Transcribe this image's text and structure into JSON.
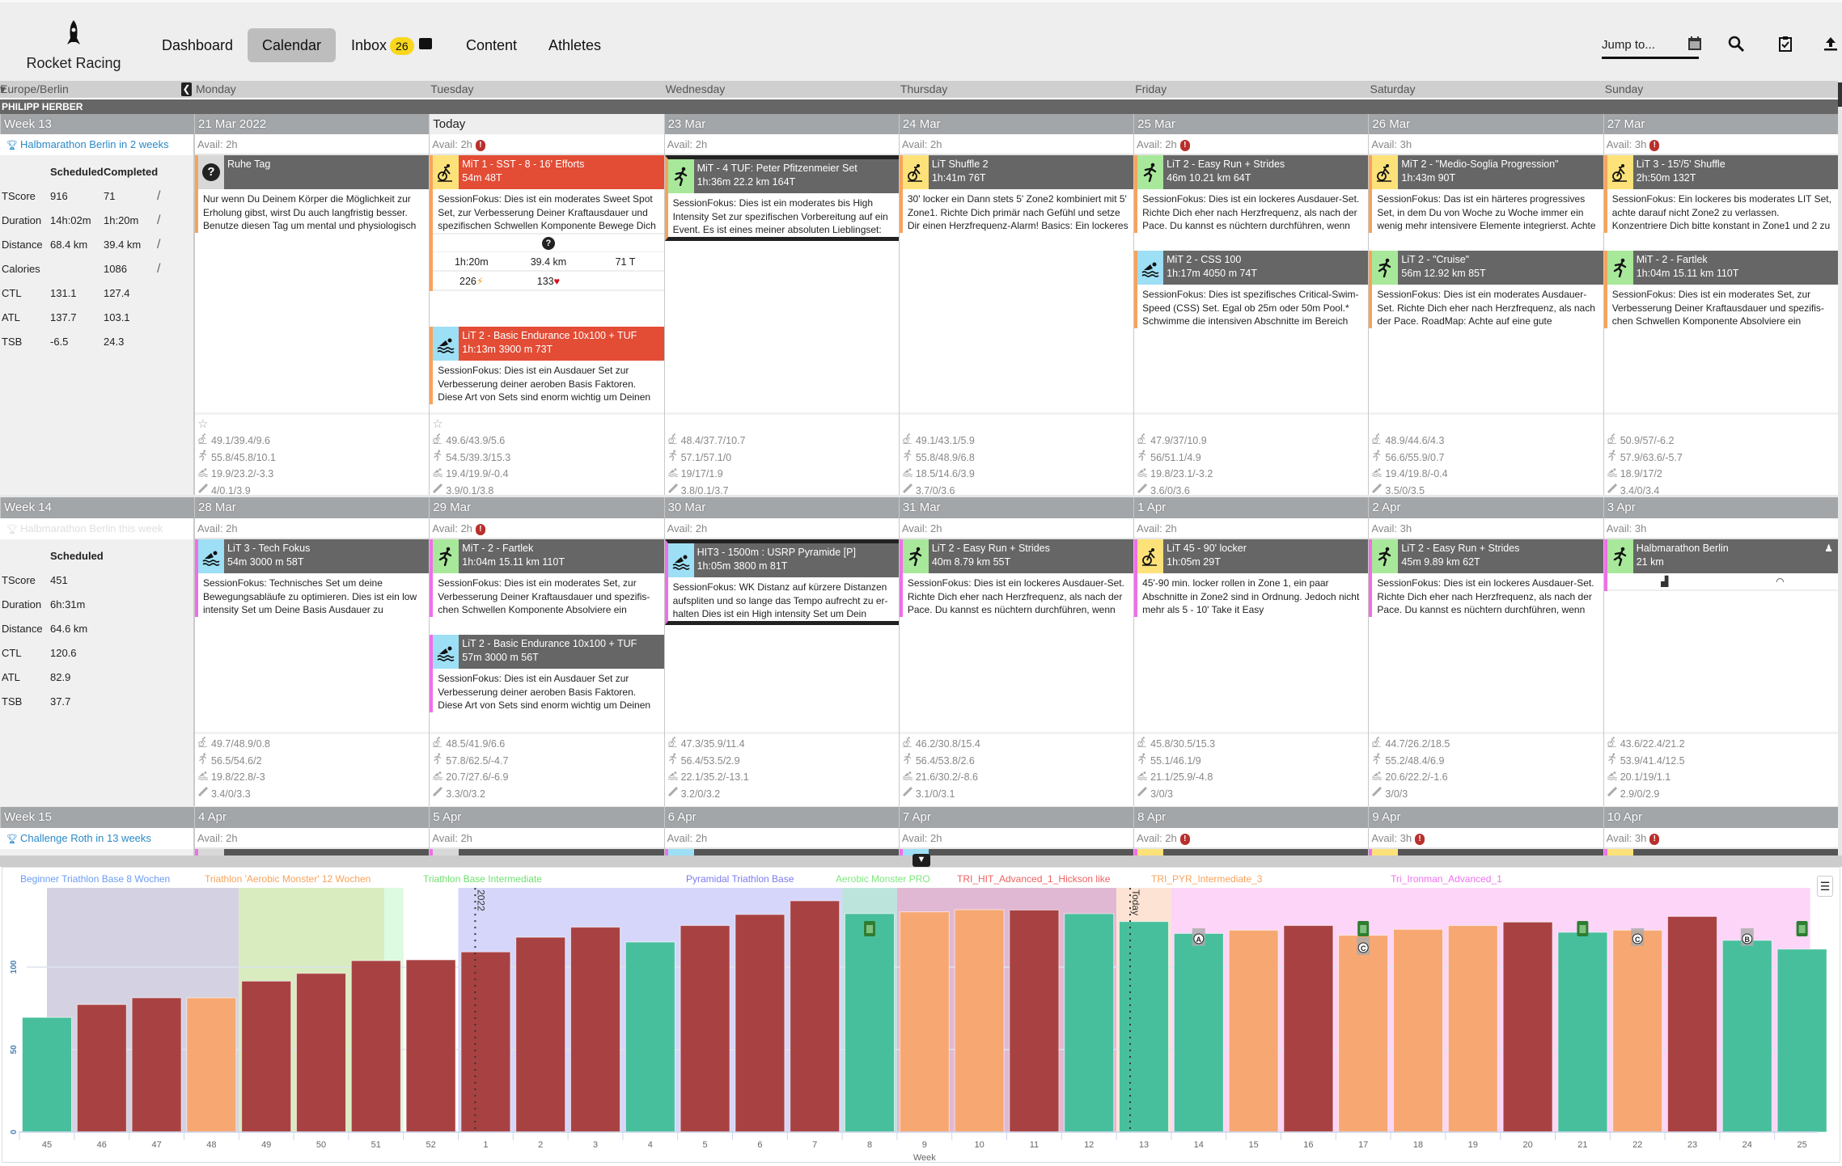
{
  "app": {
    "name": "Rocket Racing"
  },
  "nav": [
    {
      "label": "Dashboard"
    },
    {
      "label": "Calendar",
      "active": true
    },
    {
      "label": "Inbox",
      "badge": "26"
    },
    {
      "label": "Content"
    },
    {
      "label": "Athletes"
    }
  ],
  "toolbar": {
    "jump_placeholder": "Jump to..."
  },
  "timezone": "Europe/Berlin",
  "weekdays": [
    "Monday",
    "Tuesday",
    "Wednesday",
    "Thursday",
    "Friday",
    "Saturday",
    "Sunday"
  ],
  "athlete": "PHILIPP HERBER",
  "colors": {
    "bike": "#fde27a",
    "run": "#a8e89a",
    "swim": "#9ddff5",
    "rest": "#d8d8d8",
    "accent": "#2a8ac8",
    "badge": "#f9d71c",
    "alert": "#b8302c"
  },
  "weeks": [
    {
      "label": "Week 13",
      "goal": "Halbmarathon Berlin in 2 weeks",
      "goal_faded": false,
      "stripe": "#f7a35c",
      "stat_headers": [
        "Scheduled",
        "Completed"
      ],
      "stats": [
        {
          "k": "TScore",
          "s": "916",
          "c": "71",
          "slash": true
        },
        {
          "k": "Duration",
          "s": "14h:02m",
          "c": "1h:20m",
          "slash": true
        },
        {
          "k": "Distance",
          "s": "68.4 km",
          "c": "39.4 km",
          "slash": true
        },
        {
          "k": "Calories",
          "s": "",
          "c": "1086",
          "slash": true
        },
        {
          "k": "CTL",
          "s": "131.1",
          "c": "127.4"
        },
        {
          "k": "ATL",
          "s": "137.7",
          "c": "103.1"
        },
        {
          "k": "TSB",
          "s": "-6.5",
          "c": "24.3"
        }
      ],
      "days": [
        {
          "date": "21 Mar 2022",
          "avail": "Avail: 2h",
          "star": true,
          "workouts": [
            {
              "sport": "rest",
              "title": "Ruhe Tag",
              "sub": "",
              "desc": "Nur wenn Du Deinem Körper die Möglichkeit zur Erholung gibst, wirst Du auch langfristig besser. Benutze diesen Tag um mental und physiologisch"
            }
          ],
          "metrics": [
            "49.1/39.4/9.6",
            "55.8/45.8/10.1",
            "19.9/23.2/-3.3",
            "4/0.1/3.9"
          ]
        },
        {
          "date": "Today",
          "today": true,
          "avail": "Avail: 2h",
          "alert": true,
          "star": true,
          "workouts": [
            {
              "sport": "bike",
              "red": true,
              "title": "MiT 1 - SST - 8 - 16' Efforts",
              "sub": "54m 48T",
              "desc": "SessionFokus:  Dies ist ein moderates Sweet Spot Set, zur Verbesserung Deiner Kraftausdauer und spezifischen Schwellen Komponente Bewege Dich",
              "done": {
                "duration": "1h:20m",
                "distance": "39.4 km",
                "tscore": "71 T",
                "power": "226",
                "hr": "133"
              }
            },
            {
              "sport": "swim",
              "red": true,
              "title": "LiT 2 - Basic Endurance 10x100 + TUF",
              "sub": "1h:13m 3900 m 73T",
              "desc": "SessionFokus:  Dies ist ein Ausdauer Set zur Verbesserung deiner aeroben Basis Faktoren. Diese Art von Sets sind enorm wichtig um Deinen"
            }
          ],
          "metrics": [
            "49.6/43.9/5.6",
            "54.5/39.3/15.3",
            "19.4/19.9/-0.4",
            "3.9/0.1/3.8"
          ]
        },
        {
          "date": "23 Mar",
          "avail": "Avail: 2h",
          "workouts": [
            {
              "sport": "run",
              "selected": true,
              "title": "MiT - 4 TUF: Peter Pfitzenmeier Set",
              "sub": "1h:36m 22.2 km 164T",
              "desc": "SessionFokus:  Dies ist ein moderates bis High Intensity Set zur spezifischen Vorbereitung auf ein Event.  Es ist eines meiner absoluten Lieblingset:"
            }
          ],
          "metrics": [
            "48.4/37.7/10.7",
            "57.1/57.1/0",
            "19/17/1.9",
            "3.8/0.1/3.7"
          ]
        },
        {
          "date": "24 Mar",
          "avail": "Avail: 2h",
          "workouts": [
            {
              "sport": "bike",
              "title": "LiT Shuffle 2",
              "sub": "1h:41m 76T",
              "desc": "30' locker ein Dann stets 5' Zone2 kombiniert mit 5' Zone1. Richte Dich primär nach Gefühl und setze Dir einen Herzfrequenz-Alarm! Basics:  Ein lockeres"
            }
          ],
          "metrics": [
            "49.1/43.1/5.9",
            "55.8/48.9/6.8",
            "18.5/14.6/3.9",
            "3.7/0/3.6"
          ]
        },
        {
          "date": "25 Mar",
          "avail": "Avail: 2h",
          "alert": true,
          "workouts": [
            {
              "sport": "run",
              "title": "LiT 2 - Easy Run + Strides",
              "sub": "46m 10.21 km 64T",
              "desc": "SessionFokus:  Dies ist ein lockeres Ausdauer-Set. Richte Dich eher nach Herzfrequenz, als nach der Pace.   Du kannst es nüchtern durchführen, wenn"
            },
            {
              "sport": "swim",
              "title": "MiT 2 - CSS 100",
              "sub": "1h:17m 4050 m 74T",
              "desc": "SessionFokus:  Dies ist spezifisches Critical-Swim-Speed (CSS) Set. Egal ob 25m oder 50m Pool.* Schwimme die intensiven Abschnitte im Bereich"
            }
          ],
          "metrics": [
            "47.9/37/10.9",
            "56/51.1/4.9",
            "19.8/23.1/-3.2",
            "3.6/0/3.6"
          ]
        },
        {
          "date": "26 Mar",
          "avail": "Avail: 3h",
          "workouts": [
            {
              "sport": "bike",
              "title": "MiT 2 - \"Medio-Soglia Progression\"",
              "sub": "1h:43m 90T",
              "desc": "SessionFokus:  Das ist ein härteres progressives Set, in dem Du von Woche zu Woche immer ein wenig mehr intensivere Elemente integrierst. Achte"
            },
            {
              "sport": "run",
              "title": "LiT 2 - \"Cruise\"",
              "sub": "56m 12.92 km 85T",
              "desc": "SessionFokus:  Dies ist ein moderates Ausdauer-Set.  Richte Dich eher nach Herzfrequenz, als nach der Pace.   RoadMap:  Achte auf eine gute"
            }
          ],
          "metrics": [
            "48.9/44.6/4.3",
            "56.6/55.9/0.7",
            "19.4/19.8/-0.4",
            "3.5/0/3.5"
          ]
        },
        {
          "date": "27 Mar",
          "avail": "Avail: 3h",
          "alert": true,
          "workouts": [
            {
              "sport": "bike",
              "title": "LiT 3 - 15'/5' Shuffle",
              "sub": "2h:50m 132T",
              "desc": "SessionFokus:  Ein lockeres bis moderates LIT Set, achte darauf nicht Zone2 zu verlassen. Konzentriere Dich bitte konstant in Zone1 und 2 zu arbeiten."
            },
            {
              "sport": "run",
              "title": "MiT - 2 - Fartlek",
              "sub": "1h:04m 15.11 km 110T",
              "desc": "SessionFokus:  Dies ist ein moderates Set, zur Verbesserung Deiner Kraftausdauer und spezifis-chen Schwellen Komponente Absolviere ein"
            }
          ],
          "metrics": [
            "50.9/57/-6.2",
            "57.9/63.6/-5.7",
            "18.9/17/2",
            "3.4/0/3.4"
          ]
        }
      ]
    },
    {
      "label": "Week 14",
      "goal": "Halbmarathon Berlin this week",
      "goal_faded": true,
      "stripe": "#ef6fe8",
      "stat_headers": [
        "Scheduled"
      ],
      "stats": [
        {
          "k": "TScore",
          "s": "451"
        },
        {
          "k": "Duration",
          "s": "6h:31m"
        },
        {
          "k": "Distance",
          "s": "64.6 km"
        },
        {
          "k": "CTL",
          "s": "120.6"
        },
        {
          "k": "ATL",
          "s": "82.9"
        },
        {
          "k": "TSB",
          "s": "37.7"
        }
      ],
      "days": [
        {
          "date": "28 Mar",
          "avail": "Avail: 2h",
          "workouts": [
            {
              "sport": "swim",
              "title": "LiT 3 - Tech Fokus",
              "sub": "54m 3000 m 58T",
              "desc": "SessionFokus:  Technisches Set um deine Bewegungsabläufe zu optimieren.  Dies ist ein low intensity Set um Deine Basis Ausdauer zu"
            }
          ],
          "metrics": [
            "49.7/48.9/0.8",
            "56.5/54.6/2",
            "19.8/22.8/-3",
            "3.4/0/3.3"
          ]
        },
        {
          "date": "29 Mar",
          "avail": "Avail: 2h",
          "alert": true,
          "workouts": [
            {
              "sport": "run",
              "title": "MiT - 2 - Fartlek",
              "sub": "1h:04m 15.11 km 110T",
              "desc": "SessionFokus:  Dies ist ein moderates Set, zur Verbesserung Deiner Kraftausdauer und spezifis-chen Schwellen Komponente Absolviere ein"
            },
            {
              "sport": "swim",
              "title": "LiT 2 - Basic Endurance 10x100 + TUF",
              "sub": "57m 3000 m 56T",
              "desc": "SessionFokus:  Dies ist ein Ausdauer Set zur Verbesserung deiner aeroben Basis Faktoren. Diese Art von Sets sind enorm wichtig um Deinen"
            }
          ],
          "metrics": [
            "48.5/41.9/6.6",
            "57.8/62.5/-4.7",
            "20.7/27.6/-6.9",
            "3.3/0/3.2"
          ]
        },
        {
          "date": "30 Mar",
          "avail": "Avail: 2h",
          "workouts": [
            {
              "sport": "swim",
              "selected": true,
              "title": "HIT3 - 1500m : USRP Pyramide [P]",
              "sub": "1h:05m 3800 m 81T",
              "desc": "SessionFokus:  WK Distanz auf kürzere Distanzen aufspliten und so lange das Tempo aufrecht zu er-halten Dies ist ein High intensity Set um Dein"
            }
          ],
          "metrics": [
            "47.3/35.9/11.4",
            "56.4/53.5/2.9",
            "22.1/35.2/-13.1",
            "3.2/0/3.2"
          ]
        },
        {
          "date": "31 Mar",
          "avail": "Avail: 2h",
          "workouts": [
            {
              "sport": "run",
              "title": "LiT 2 - Easy Run + Strides",
              "sub": "40m 8.79 km 55T",
              "desc": "SessionFokus:  Dies ist ein lockeres Ausdauer-Set. Richte Dich eher nach Herzfrequenz, als nach der Pace.   Du kannst es nüchtern durchführen, wenn"
            }
          ],
          "metrics": [
            "46.2/30.8/15.4",
            "56.4/53.8/2.6",
            "21.6/30.2/-8.6",
            "3.1/0/3.1"
          ]
        },
        {
          "date": "1 Apr",
          "avail": "Avail: 2h",
          "workouts": [
            {
              "sport": "bike",
              "title": "LiT 45 - 90' locker",
              "sub": "1h:05m 29T",
              "desc": "45'-90 min. locker rollen in Zone 1, ein paar Abschnitte in Zone2 sind in Ordnung. Jedoch nicht mehr als 5 - 10' Take it Easy"
            }
          ],
          "metrics": [
            "45.8/30.5/15.3",
            "55.1/46.1/9",
            "21.1/25.9/-4.8",
            "3/0/3"
          ]
        },
        {
          "date": "2 Apr",
          "avail": "Avail: 3h",
          "workouts": [
            {
              "sport": "run",
              "title": "LiT 2 - Easy Run + Strides",
              "sub": "45m 9.89 km 62T",
              "desc": "SessionFokus:  Dies ist ein lockeres Ausdauer-Set. Richte Dich eher nach Herzfrequenz, als nach der Pace.   Du kannst es nüchtern durchführen, wenn"
            }
          ],
          "metrics": [
            "44.7/26.2/18.5",
            "55.2/48.4/6.9",
            "20.6/22.2/-1.6",
            "3/0/3"
          ]
        },
        {
          "date": "3 Apr",
          "avail": "Avail: 3h",
          "workouts": [
            {
              "sport": "run",
              "event": true,
              "title": "Halbmarathon Berlin",
              "sub": "21 km"
            }
          ],
          "metrics": [
            "43.6/22.4/21.2",
            "53.9/41.4/12.5",
            "20.1/19/1.1",
            "2.9/0/2.9"
          ]
        }
      ]
    },
    {
      "label": "Week 15",
      "goal": "Challenge Roth in 13 weeks",
      "goal_faded": false,
      "stripe": "#ef6fe8",
      "partial": true,
      "days": [
        {
          "date": "4 Apr",
          "avail": "Avail: 2h",
          "sport": "rest"
        },
        {
          "date": "5 Apr",
          "avail": "Avail: 2h",
          "sport": "rest"
        },
        {
          "date": "6 Apr",
          "avail": "Avail: 2h",
          "sport": "swim"
        },
        {
          "date": "7 Apr",
          "avail": "Avail: 2h",
          "sport": "swim"
        },
        {
          "date": "8 Apr",
          "avail": "Avail: 2h",
          "alert": true,
          "sport": "bike"
        },
        {
          "date": "9 Apr",
          "avail": "Avail: 3h",
          "alert": true,
          "sport": "bike"
        },
        {
          "date": "10 Apr",
          "avail": "Avail: 3h",
          "alert": true,
          "sport": "bike"
        }
      ]
    }
  ],
  "chart_data": {
    "type": "bar",
    "xlabel": "Week",
    "ylabel": "",
    "ylim": [
      0,
      148
    ],
    "yticks": [
      0,
      50,
      100
    ],
    "categories": [
      "45",
      "46",
      "47",
      "48",
      "49",
      "50",
      "51",
      "52",
      "1",
      "2",
      "3",
      "4",
      "5",
      "6",
      "7",
      "8",
      "9",
      "10",
      "11",
      "12",
      "13",
      "14",
      "15",
      "16",
      "17",
      "18",
      "19",
      "20",
      "21",
      "22",
      "23",
      "24",
      "25"
    ],
    "values": [
      69.5,
      77.3,
      81.4,
      81.4,
      91.5,
      96.2,
      103.9,
      104.4,
      109.2,
      118.1,
      124.2,
      115.2,
      125.2,
      131.9,
      140.2,
      132.4,
      133.5,
      134.8,
      134.6,
      132.4,
      127.6,
      120.4,
      122.4,
      125.2,
      119.3,
      122.9,
      125.2,
      127.3,
      121.1,
      122.4,
      130.7,
      116.2,
      110.9
    ],
    "bar_types": [
      "g",
      "r",
      "r",
      "o",
      "r",
      "r",
      "r",
      "r",
      "r",
      "r",
      "r",
      "g",
      "r",
      "r",
      "r",
      "g",
      "o",
      "o",
      "r",
      "g",
      "g",
      "g",
      "o",
      "r",
      "o",
      "o",
      "o",
      "r",
      "g",
      "o",
      "r",
      "g",
      "g"
    ],
    "bar_colors": {
      "g": "#48bf9c",
      "r": "#a84242",
      "o": "#f7a872"
    },
    "plans": [
      {
        "label": "Beginner Triathlon Base 8 Wochen",
        "from": "45",
        "to": "48",
        "fill": "#d4d2e2",
        "color": "#6b9cf5"
      },
      {
        "label": "Triathlon 'Aerobic Monster' 12 Wochen",
        "from": "49",
        "to": "51",
        "fill": "#d9ecc0",
        "color": "#f7a35c"
      },
      {
        "label": "Triathlon Base Intermediate",
        "from": "51",
        "to": "51",
        "fill": "#dcfbe0",
        "color": "#6fe070"
      },
      {
        "label": "Pyramidal Triathlon Base",
        "from": "1",
        "to": "7",
        "fill": "#d6d6fa",
        "color": "#7b7bf0"
      },
      {
        "label": "Aerobic Monster PRO",
        "from": "8",
        "to": "8",
        "fill": "#bde3dd",
        "color": "#7de87d"
      },
      {
        "label": "TRI_HIT_Advanced_1_Hickson like",
        "from": "9",
        "to": "12",
        "fill": "#e1b8d3",
        "color": "#f06060"
      },
      {
        "label": "TRI_PYR_Intermediate_3",
        "from": "13",
        "to": "13",
        "fill": "#fde3d3",
        "color": "#f7a35c"
      },
      {
        "label": "Tri_Ironman_Advanced_1",
        "from": "14",
        "to": "25",
        "fill": "#fcd5f8",
        "color": "#f070f0"
      }
    ],
    "annotations": [
      {
        "week": "1",
        "label": "2022"
      },
      {
        "week": "13",
        "label": "Today"
      }
    ],
    "markers": [
      {
        "week": "8",
        "kind": "clipboard"
      },
      {
        "week": "14",
        "kind": "race",
        "label": "A"
      },
      {
        "week": "17",
        "kind": "clipboard"
      },
      {
        "week": "17",
        "kind": "race",
        "label": "C"
      },
      {
        "week": "21",
        "kind": "clipboard"
      },
      {
        "week": "22",
        "kind": "race",
        "label": "C"
      },
      {
        "week": "24",
        "kind": "race",
        "label": "B"
      },
      {
        "week": "25",
        "kind": "clipboard"
      }
    ]
  }
}
